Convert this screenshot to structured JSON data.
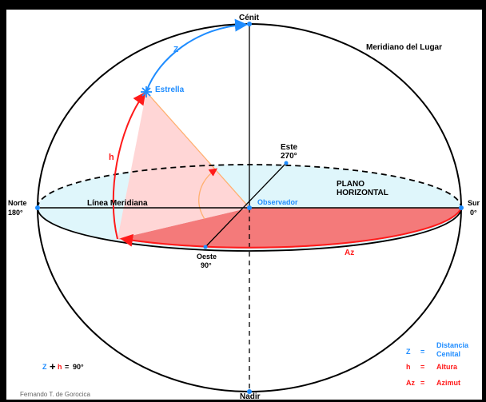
{
  "diagram": {
    "labels": {
      "zenith": "Cénit",
      "nadir": "Nadir",
      "local_meridian": "Meridiano del Lugar",
      "star": "Estrella",
      "east": "Este",
      "east_deg": "270°",
      "north": "Norte",
      "north_deg": "180°",
      "south": "Sur",
      "south_deg": "0°",
      "west": "Oeste",
      "west_deg": "90°",
      "meridian_line": "Línea Meridiana",
      "observer": "Observador",
      "plane_line1": "PLANO",
      "plane_line2": "HORIZONTAL",
      "z_arc": "Z",
      "h_arc": "h",
      "az_arc": "Az",
      "credit": "Fernando T. de Gorocica"
    },
    "formula": {
      "z": "Z",
      "plus": "+",
      "h": "h",
      "eq": "=",
      "value": "90°"
    },
    "legend": [
      {
        "symbol": "Z",
        "eq": "=",
        "line1": "Distancia",
        "line2": "Cenital",
        "color": "#1e8cff"
      },
      {
        "symbol": "h",
        "eq": "=",
        "line1": "Altura",
        "line2": "",
        "color": "#ff1a1a"
      },
      {
        "symbol": "Az",
        "eq": "=",
        "line1": "Azimut",
        "line2": "",
        "color": "#ff1a1a"
      }
    ],
    "colors": {
      "blue": "#1e8cff",
      "red": "#ff1a1a",
      "horizon_fill": "#dff6fb",
      "pink_fill": "#ffd6d6",
      "red_fill": "#f47a7a",
      "orange": "#ffb070"
    }
  }
}
